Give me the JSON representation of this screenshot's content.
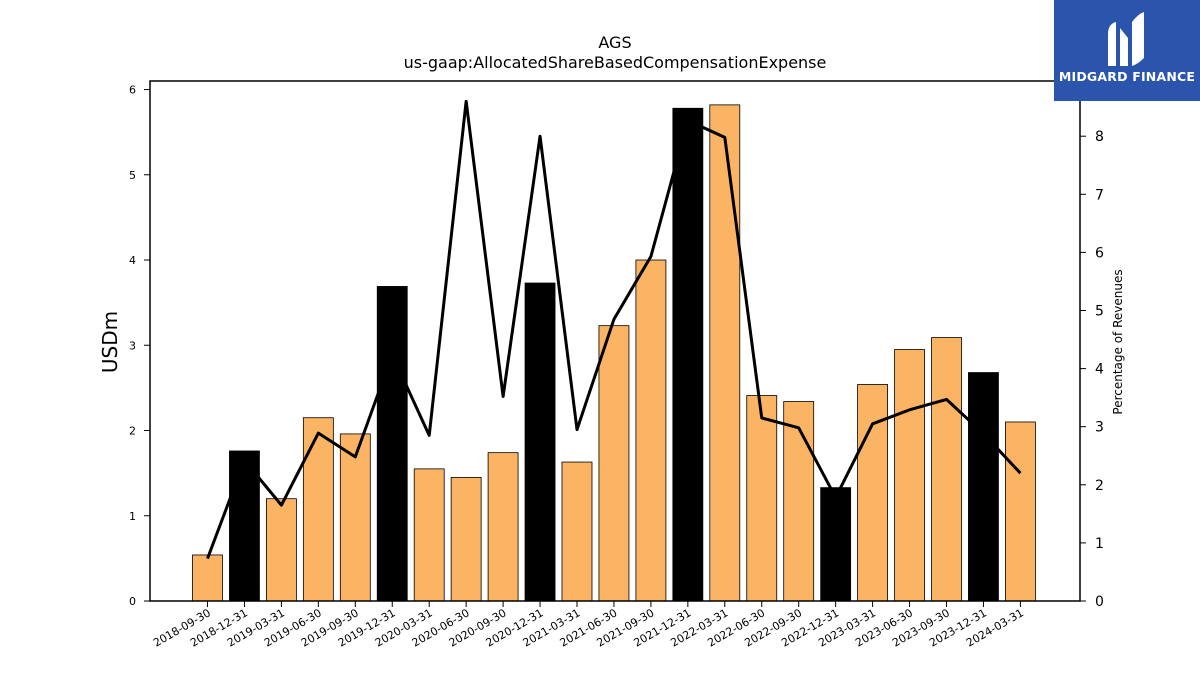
{
  "logo": {
    "text": "MIDGARD FINANCE",
    "color": "#2b55ad"
  },
  "chart_data": {
    "type": "bar+line",
    "title": "AGS",
    "subtitle": "us-gaap:AllocatedShareBasedCompensationExpense",
    "ylabel": "USDm",
    "y2label": "Percentage of Revenues",
    "ylim": [
      0,
      6.1
    ],
    "y2lim": [
      0,
      8.95
    ],
    "yticks": [
      0,
      1,
      2,
      3,
      4,
      5,
      6
    ],
    "y2ticks": [
      0,
      1,
      2,
      3,
      4,
      5,
      6,
      7,
      8
    ],
    "grid": false,
    "categories": [
      "2018-09-30",
      "2018-12-31",
      "2019-03-31",
      "2019-06-30",
      "2019-09-30",
      "2019-12-31",
      "2020-03-31",
      "2020-06-30",
      "2020-09-30",
      "2020-12-31",
      "2021-03-31",
      "2021-06-30",
      "2021-09-30",
      "2021-12-31",
      "2022-03-31",
      "2022-06-30",
      "2022-09-30",
      "2022-12-31",
      "2023-03-31",
      "2023-06-30",
      "2023-09-30",
      "2023-12-31",
      "2024-03-31"
    ],
    "values": [
      0.54,
      1.76,
      1.2,
      2.15,
      1.96,
      3.69,
      1.55,
      1.45,
      1.74,
      3.73,
      1.63,
      3.23,
      4.0,
      5.78,
      5.82,
      2.41,
      2.34,
      1.33,
      2.54,
      2.95,
      3.09,
      2.68,
      2.1
    ],
    "bar_highlight": [
      false,
      true,
      false,
      false,
      false,
      true,
      false,
      false,
      false,
      true,
      false,
      false,
      false,
      true,
      false,
      false,
      false,
      true,
      false,
      false,
      false,
      true,
      false
    ],
    "line_values": [
      0.73,
      2.42,
      1.65,
      2.89,
      2.48,
      4.24,
      2.85,
      8.6,
      3.52,
      8.0,
      2.95,
      4.85,
      5.93,
      8.27,
      7.98,
      3.15,
      2.98,
      1.78,
      3.05,
      3.29,
      3.47,
      2.88,
      2.2
    ],
    "colors": {
      "bar": "#fbb464",
      "bar_highlight": "#000000",
      "line": "#000000"
    }
  }
}
